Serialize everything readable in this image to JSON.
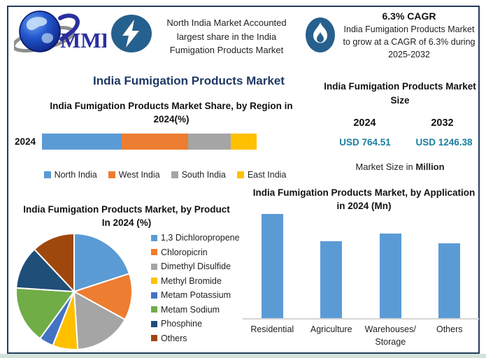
{
  "brand": {
    "logo_text": "MMR"
  },
  "header": {
    "headline": "North India Market Accounted largest share in the India Fumigation Products Market",
    "cagr_title": "6.3% CAGR",
    "cagr_text": "India Fumigation Products Market to grow at a CAGR of 6.3% during 2025-2032"
  },
  "main_title": "India Fumigation Products Market",
  "market_size": {
    "title": "India Fumigation Products Market Size",
    "year_start": "2024",
    "year_end": "2032",
    "value_start": "USD 764.51",
    "value_end": "USD 1246.38",
    "unit_prefix": "Market Size in ",
    "unit_bold": "Million",
    "value_color": "#1b7ea1"
  },
  "chart_data": [
    {
      "id": "region_share",
      "type": "bar",
      "variant": "horizontal-stacked",
      "title": "India Fumigation Products Market Share, by Region in 2024(%)",
      "categories": [
        "2024"
      ],
      "series": [
        {
          "name": "North India",
          "values": [
            37
          ],
          "color": "#5B9BD5"
        },
        {
          "name": "West India",
          "values": [
            31
          ],
          "color": "#ED7D31"
        },
        {
          "name": "South India",
          "values": [
            20
          ],
          "color": "#A5A5A5"
        },
        {
          "name": "East India",
          "values": [
            12
          ],
          "color": "#FFC000"
        }
      ],
      "unit": "%",
      "legend_position": "bottom",
      "values_estimated_from_pixels": true
    },
    {
      "id": "product_share",
      "type": "pie",
      "title": "India Fumigation Products Market, by Product In 2024 (%)",
      "labels": [
        "1,3 Dichloropropene",
        "Chloropicrin",
        "Dimethyl Disulfide",
        "Methyl Bromide",
        "Metam Potassium",
        "Metam Sodium",
        "Phosphine",
        "Others"
      ],
      "values": [
        20,
        13,
        16,
        7,
        4,
        16,
        12,
        12
      ],
      "colors": [
        "#5B9BD5",
        "#ED7D31",
        "#A5A5A5",
        "#FFC000",
        "#4472C4",
        "#70AD47",
        "#1F4E79",
        "#9E480E"
      ],
      "legend_position": "right",
      "values_estimated_from_pixels": true
    },
    {
      "id": "application",
      "type": "bar",
      "title": "India Fumigation Products Market, by Application in 2024 (Mn)",
      "categories": [
        "Residential",
        "Agriculture",
        "Warehouses/Storage",
        "Others"
      ],
      "values": [
        100,
        74,
        81,
        72
      ],
      "color": "#5B9BD5",
      "axis_value_labels_shown": false,
      "values_estimated_from_pixels": true
    }
  ]
}
